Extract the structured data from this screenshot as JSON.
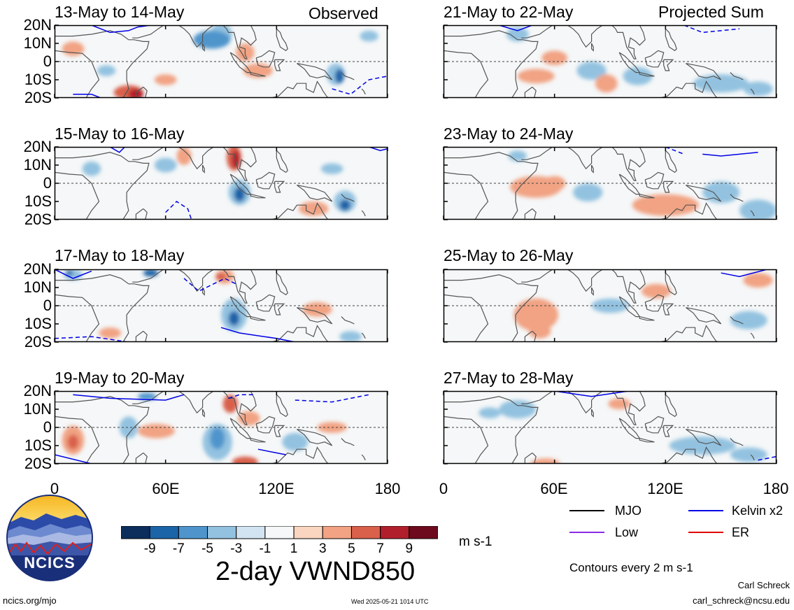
{
  "header": {
    "left_tag": "Observed",
    "right_tag": "Projected Sum"
  },
  "chart_data": [
    {
      "type": "heatmap",
      "title": "13-May to 14-May",
      "column": "Observed"
    },
    {
      "type": "heatmap",
      "title": "15-May to 16-May",
      "column": "Observed"
    },
    {
      "type": "heatmap",
      "title": "17-May to 18-May",
      "column": "Observed"
    },
    {
      "type": "heatmap",
      "title": "19-May to 20-May",
      "column": "Observed"
    },
    {
      "type": "heatmap",
      "title": "21-May to 22-May",
      "column": "Projected Sum"
    },
    {
      "type": "heatmap",
      "title": "23-May to 24-May",
      "column": "Projected Sum"
    },
    {
      "type": "heatmap",
      "title": "25-May to 26-May",
      "column": "Projected Sum"
    },
    {
      "type": "heatmap",
      "title": "27-May to 28-May",
      "column": "Projected Sum"
    }
  ],
  "axes": {
    "lat_labels": [
      "20N",
      "10N",
      "0",
      "10S",
      "20S"
    ],
    "lon_labels": [
      "0",
      "60E",
      "120E",
      "180"
    ],
    "xlim": [
      0,
      180
    ],
    "ylim": [
      -20,
      20
    ]
  },
  "colorbar": {
    "colors": [
      "#0b2e5c",
      "#1c64a8",
      "#4f95cc",
      "#93c2e0",
      "#d2e4f1",
      "#f5f7f8",
      "#fad6c1",
      "#f1a383",
      "#d9604b",
      "#b21f2c",
      "#6d0a1e"
    ],
    "tick_labels": [
      "-9",
      "-7",
      "-5",
      "-3",
      "-1",
      "1",
      "3",
      "5",
      "7",
      "9"
    ],
    "units": "m s-1"
  },
  "main_title": "2-day VWND850",
  "legend": {
    "items": [
      {
        "label": "MJO",
        "color": "#000000"
      },
      {
        "label": "Kelvin x2",
        "color": "#0000e6"
      },
      {
        "label": "Low",
        "color": "#8a2be2"
      },
      {
        "label": "ER",
        "color": "#e00000"
      }
    ],
    "note": "Contours every 2 m s-1"
  },
  "logo": {
    "text": "NCICS"
  },
  "footer": {
    "left": "ncics.org/mjo",
    "center": "Wed 2025-05-21 1014 UTC",
    "author": "Carl Schreck",
    "email": "carl_schreck@ncsu.edu"
  }
}
